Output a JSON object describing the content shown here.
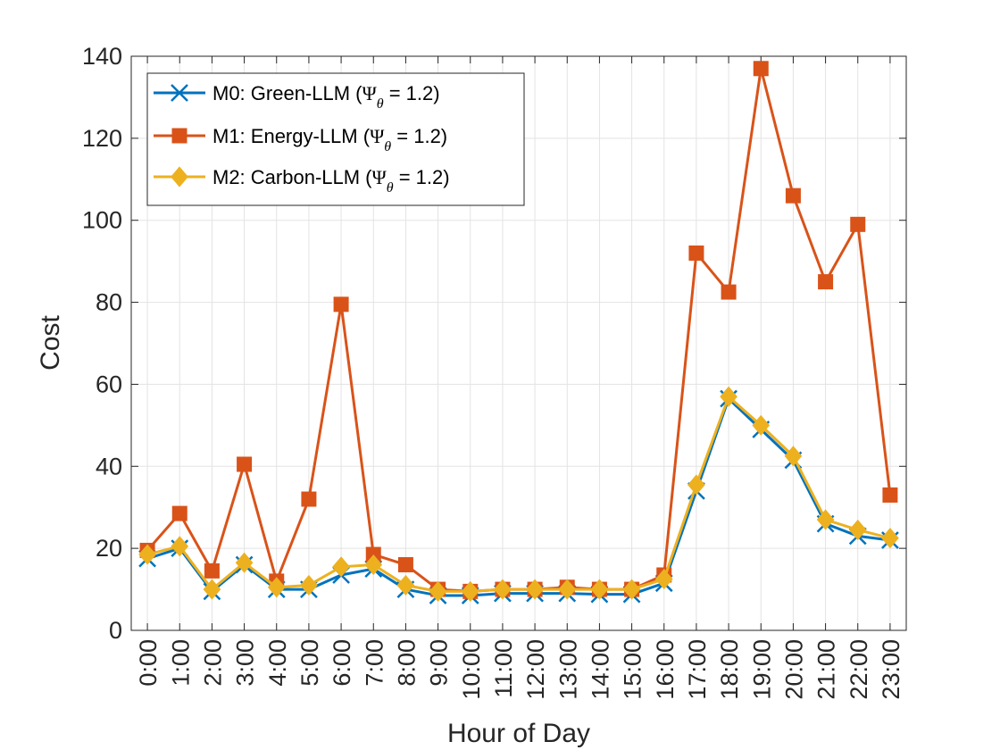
{
  "chart_data": {
    "type": "line",
    "categories": [
      "0:00",
      "1:00",
      "2:00",
      "3:00",
      "4:00",
      "5:00",
      "6:00",
      "7:00",
      "8:00",
      "9:00",
      "10:00",
      "11:00",
      "12:00",
      "13:00",
      "14:00",
      "15:00",
      "16:00",
      "17:00",
      "18:00",
      "19:00",
      "20:00",
      "21:00",
      "22:00",
      "23:00"
    ],
    "xlabel": "Hour of Day",
    "ylabel": "Cost",
    "ylim": [
      0,
      140
    ],
    "yticks": [
      0,
      20,
      40,
      60,
      80,
      100,
      120,
      140
    ],
    "grid": true,
    "legend_position": "top-left",
    "series": [
      {
        "name": "M0: Green-LLM (Ψθ = 1.2)",
        "legend_prefix": "M0: Green-LLM (",
        "legend_symbol": "Ψ",
        "legend_sub": "θ",
        "legend_suffix": " = 1.2)",
        "color": "#0072BD",
        "marker": "x",
        "values": [
          17.5,
          20,
          9.5,
          16,
          10,
          10,
          13.5,
          15,
          10,
          8.5,
          8.5,
          9,
          9,
          9,
          8.8,
          8.8,
          11.5,
          34,
          56.5,
          49,
          41.5,
          26,
          23,
          22
        ]
      },
      {
        "name": "M1: Energy-LLM (Ψθ = 1.2)",
        "legend_prefix": "M1: Energy-LLM (",
        "legend_symbol": "Ψ",
        "legend_sub": "θ",
        "legend_suffix": " = 1.2)",
        "color": "#D95319",
        "marker": "square",
        "values": [
          19.5,
          28.5,
          14.5,
          40.5,
          12,
          32,
          79.5,
          18.5,
          16,
          10,
          9.5,
          10,
          10,
          10.5,
          10,
          10,
          13.5,
          92,
          82.5,
          137,
          106,
          85,
          99,
          33
        ]
      },
      {
        "name": "M2: Carbon-LLM (Ψθ = 1.2)",
        "legend_prefix": "M2: Carbon-LLM (",
        "legend_symbol": "Ψ",
        "legend_sub": "θ",
        "legend_suffix": " = 1.2)",
        "color": "#EDB120",
        "marker": "diamond",
        "values": [
          18.5,
          20.5,
          10,
          16.5,
          10.5,
          11,
          15.5,
          16,
          11,
          9.5,
          9.5,
          10,
          10,
          10,
          10,
          10,
          12.5,
          35.5,
          57,
          50,
          42.5,
          27,
          24.5,
          22.5
        ]
      }
    ]
  }
}
